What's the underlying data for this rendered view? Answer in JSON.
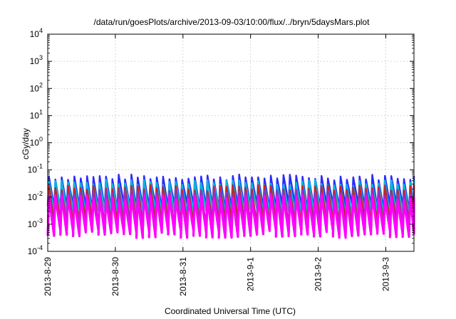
{
  "chart_data": {
    "type": "line",
    "title": "/data/run/goesPlots/archive/2013-09-03/10:00/flux/../bryn/5daysMars.plot",
    "xlabel": "Coordinated Universal Time (UTC)",
    "ylabel": "cGy/day",
    "y_scale": "log",
    "ylim": [
      0.0001,
      10000
    ],
    "y_ticks": [
      {
        "base": "10",
        "exp": "-4",
        "value": 0.0001
      },
      {
        "base": "10",
        "exp": "-3",
        "value": 0.001
      },
      {
        "base": "10",
        "exp": "-2",
        "value": 0.01
      },
      {
        "base": "10",
        "exp": "-1",
        "value": 0.1
      },
      {
        "base": "10",
        "exp": "0",
        "value": 1
      },
      {
        "base": "10",
        "exp": "1",
        "value": 10
      },
      {
        "base": "10",
        "exp": "2",
        "value": 100
      },
      {
        "base": "10",
        "exp": "3",
        "value": 1000
      },
      {
        "base": "10",
        "exp": "4",
        "value": 10000
      }
    ],
    "x_ticks": [
      "2013-8-29",
      "2013-8-30",
      "2013-8-31",
      "2013-9-1",
      "2013-9-2",
      "2013-9-3"
    ],
    "xlim": [
      "2013-08-29 00:00",
      "2013-09-03 10:00"
    ],
    "grid": true,
    "pattern": {
      "period_hours": 2.25,
      "note": "Sawtooth dose-rate pattern: rapid rise then decay each cycle"
    },
    "series": [
      {
        "color": "#2a2aff",
        "peak": 0.055,
        "trough": 0.0045
      },
      {
        "color": "#00b8d8",
        "peak": 0.035,
        "trough": 0.0028
      },
      {
        "color": "#cc2222",
        "peak": 0.022,
        "trough": 0.0012
      },
      {
        "color": "#9a30b8",
        "peak": 0.015,
        "trough": 0.00075
      },
      {
        "color": "#ff00ff",
        "peak": 0.01,
        "trough": 0.00045
      }
    ]
  }
}
